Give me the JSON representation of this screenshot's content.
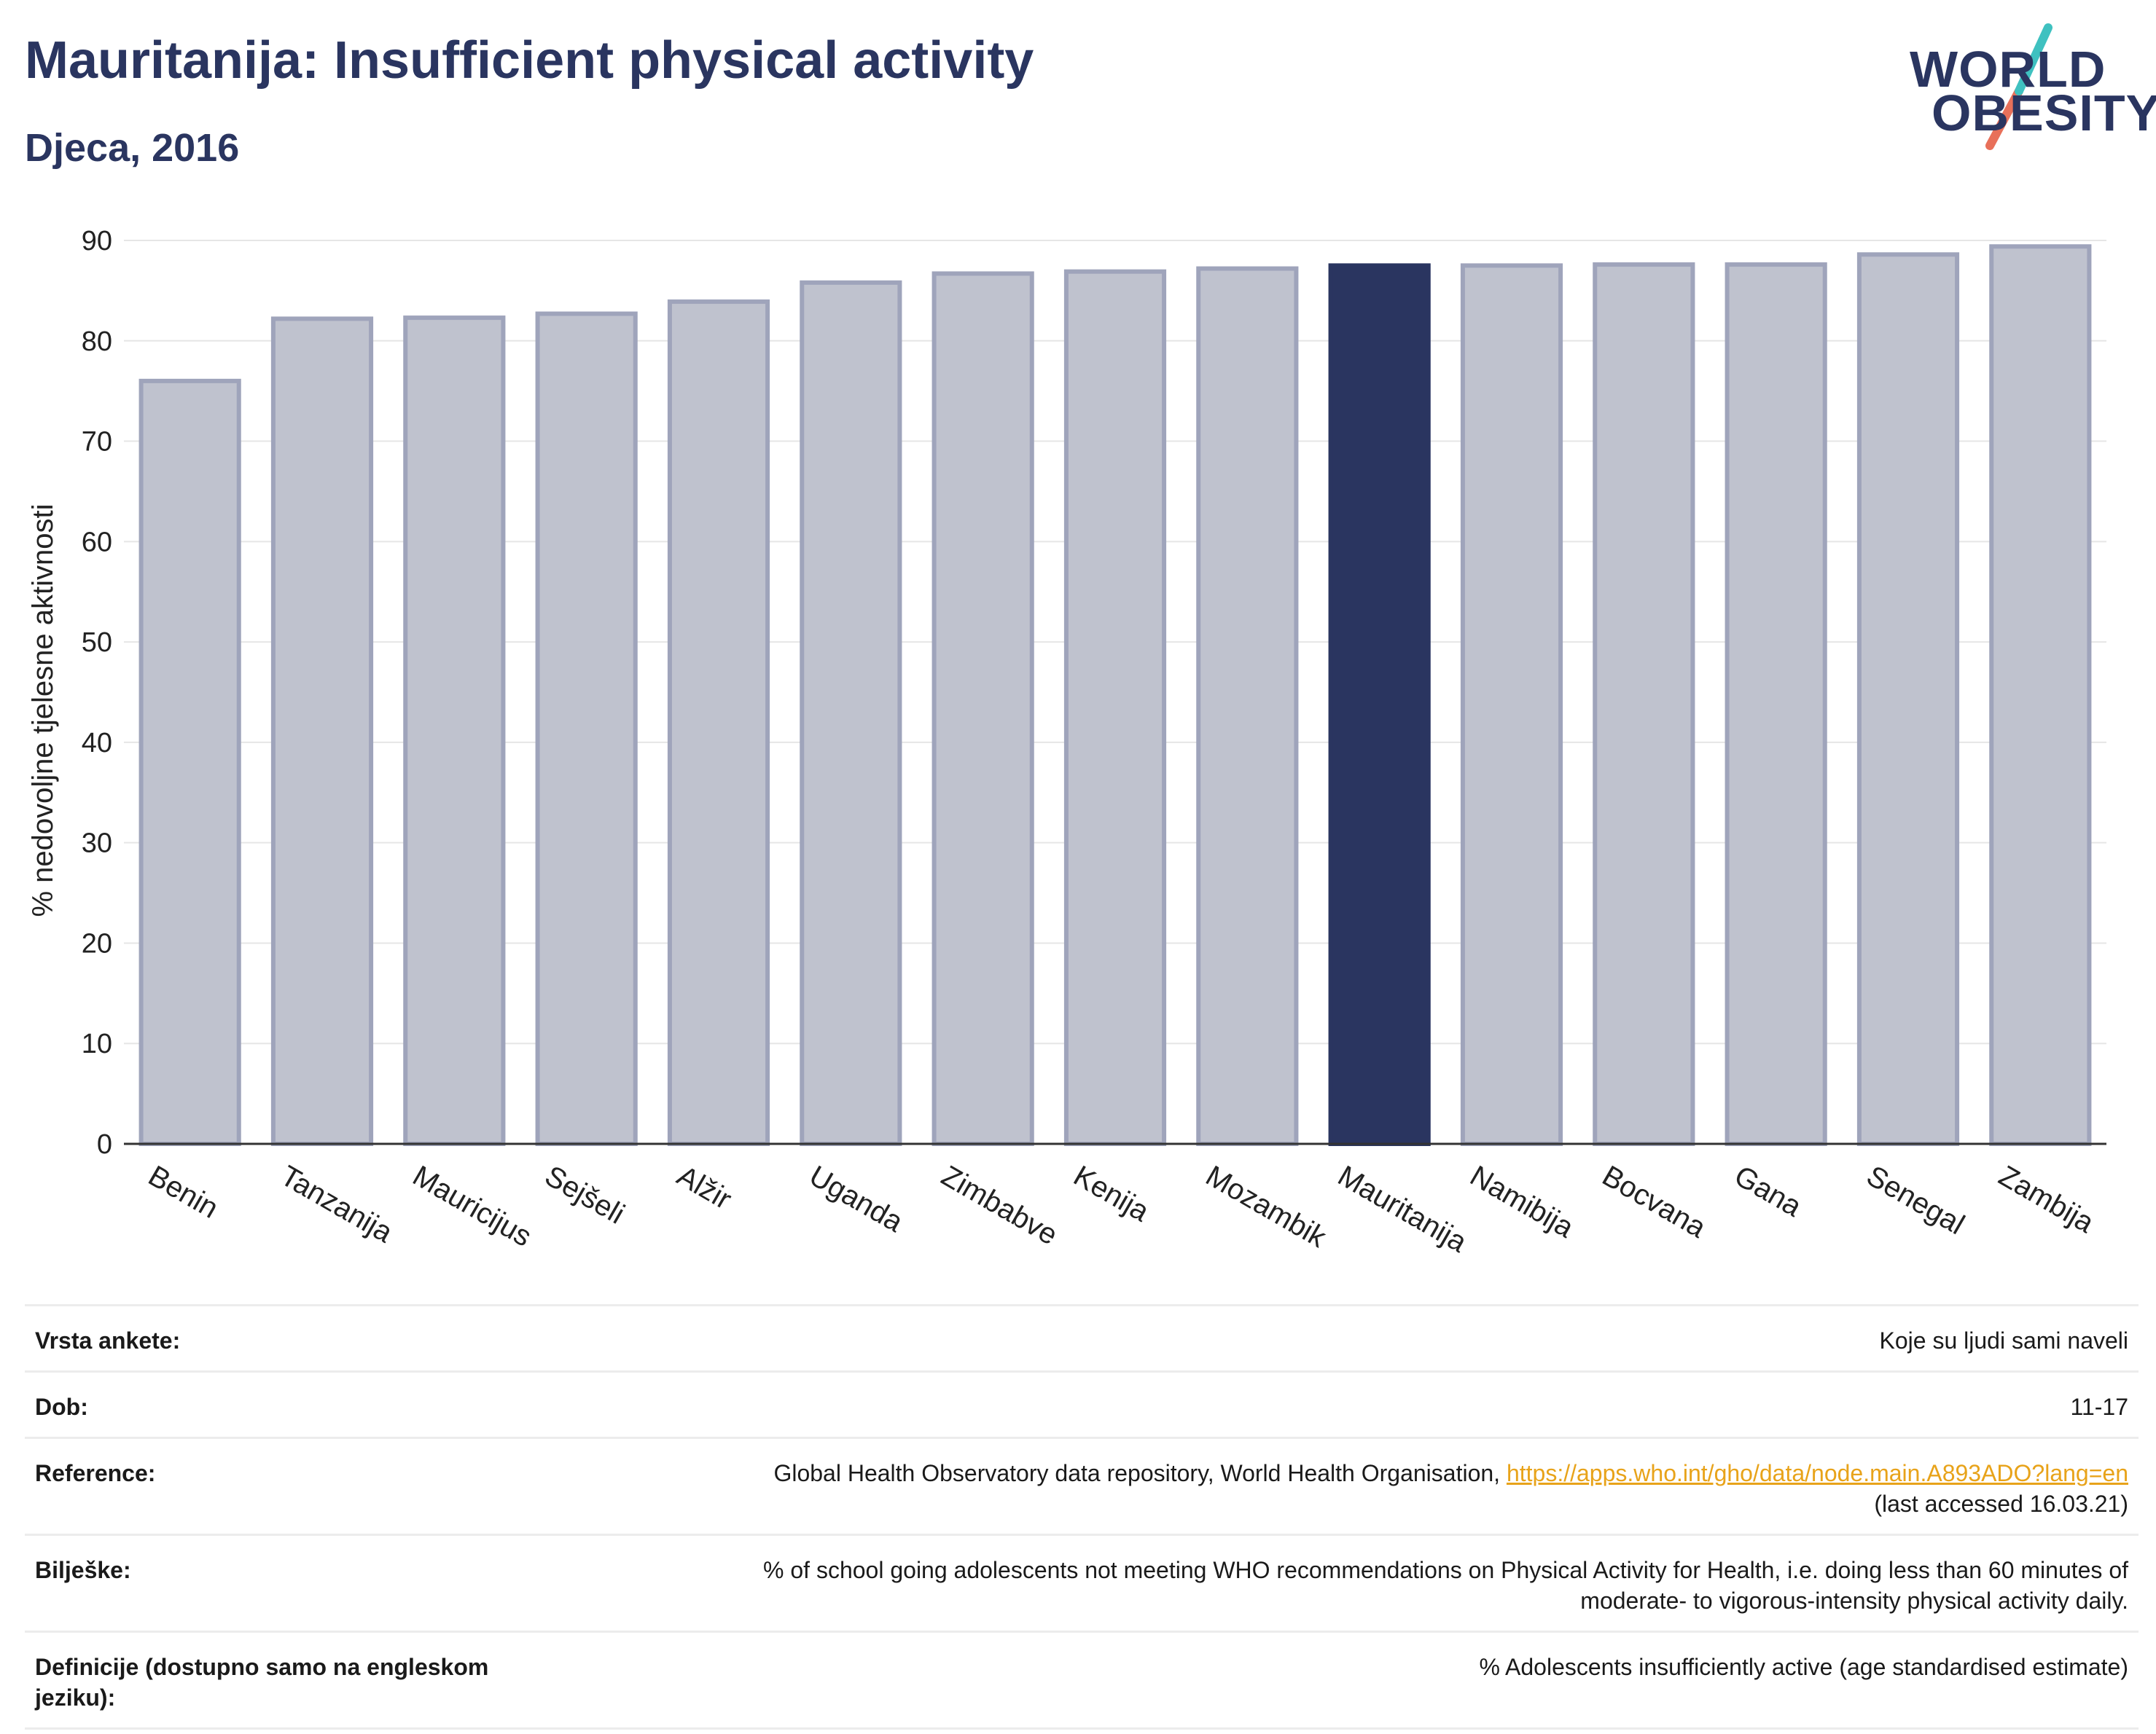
{
  "header": {
    "title": "Mauritanija: Insufficient physical activity",
    "subtitle": "Djeca, 2016"
  },
  "logo": {
    "line1": "WORLD",
    "line2": "OBESITY",
    "colors": {
      "text": "#2a3560",
      "accent_teal": "#3fc1c0",
      "accent_coral": "#e8705a"
    }
  },
  "colors": {
    "bar": "#bfc2ce",
    "bar_stroke": "#9fa4bb",
    "highlight": "#2a3560",
    "grid": "#e6e6e6",
    "axis": "#333333"
  },
  "chart_data": {
    "type": "bar",
    "ylabel": "% nedovoljne tjelesne aktivnosti",
    "xlabel": "",
    "ylim": [
      0,
      90
    ],
    "yticks": [
      0,
      10,
      20,
      30,
      40,
      50,
      60,
      70,
      80,
      90
    ],
    "grid": true,
    "categories": [
      "Benin",
      "Tanzanija",
      "Mauricijus",
      "Sejšeli",
      "Alžir",
      "Uganda",
      "Zimbabve",
      "Kenija",
      "Mozambik",
      "Mauritanija",
      "Namibija",
      "Bocvana",
      "Gana",
      "Senegal",
      "Zambija"
    ],
    "values": [
      76.0,
      82.2,
      82.3,
      82.7,
      83.9,
      85.8,
      86.7,
      86.9,
      87.2,
      87.5,
      87.5,
      87.6,
      87.6,
      88.6,
      89.4
    ],
    "highlight": "Mauritanija"
  },
  "info": {
    "rows": [
      {
        "key": "Vrsta ankete:",
        "value": "Koje su ljudi sami naveli"
      },
      {
        "key": "Dob:",
        "value": "11-17"
      },
      {
        "key": "Reference:",
        "value": "Global Health Observatory data repository, World Health Organisation, ",
        "link": "https://apps.who.int/gho/data/node.main.A893ADO?lang=en",
        "value2": "(last accessed 16.03.21)"
      },
      {
        "key": "Bilješke:",
        "value": "% of school going adolescents not meeting WHO recommendations on Physical Activity for Health, i.e. doing less than 60 minutes of",
        "value2": "moderate- to vigorous-intensity physical activity daily."
      },
      {
        "key": "Definicije (dostupno samo na engleskom jeziku):",
        "value": "% Adolescents insufficiently active (age standardised estimate)"
      }
    ]
  }
}
